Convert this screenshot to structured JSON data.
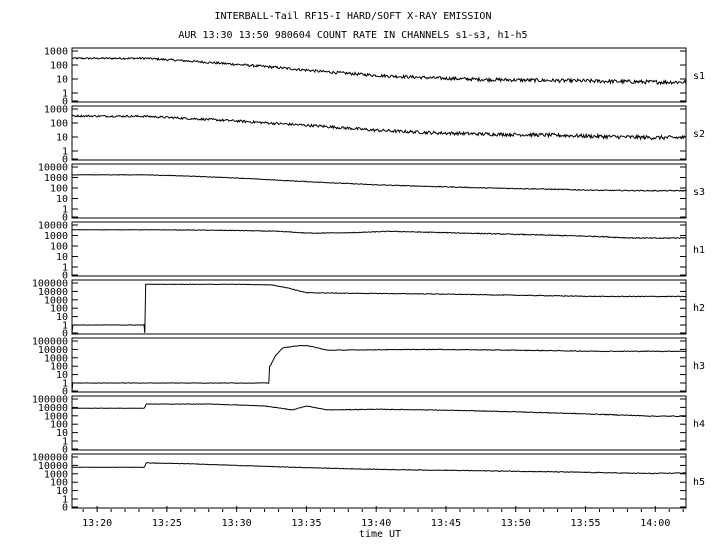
{
  "chart_data": {
    "type": "line",
    "title": "INTERBALL-Tail RF15-I HARD/SOFT X-RAY EMISSION",
    "subtitle": "AUR 13:30 13:50 980604  COUNT RATE IN CHANNELS s1-s3, h1-h5",
    "xlabel": "time UT",
    "x_unit": "minutes after 13:00 UT",
    "xlim": [
      18.2,
      62.2
    ],
    "x_ticks": [
      20,
      25,
      30,
      35,
      40,
      45,
      50,
      55,
      60
    ],
    "x_tick_labels": [
      "13:20",
      "13:25",
      "13:30",
      "13:35",
      "13:40",
      "13:45",
      "13:50",
      "13:55",
      "14:00"
    ],
    "y_scale": "log",
    "series": [
      {
        "name": "s1",
        "y_ticks": [
          "1000",
          "100",
          "10",
          "1",
          "0"
        ],
        "ylim_decades": [
          0,
          3
        ],
        "x": [
          18.2,
          23.5,
          27,
          30,
          33,
          36,
          40,
          44,
          48,
          52,
          56,
          60,
          62.2
        ],
        "values": [
          300,
          300,
          180,
          110,
          65,
          35,
          18,
          12,
          9,
          8,
          7,
          6,
          6
        ]
      },
      {
        "name": "s2",
        "y_ticks": [
          "1000",
          "100",
          "10",
          "1",
          "0"
        ],
        "ylim_decades": [
          0,
          3
        ],
        "x": [
          18.2,
          23.5,
          27,
          30,
          33,
          36,
          40,
          44,
          48,
          52,
          56,
          60,
          62.2
        ],
        "values": [
          320,
          300,
          200,
          140,
          90,
          60,
          30,
          20,
          16,
          14,
          11,
          9,
          9
        ]
      },
      {
        "name": "s3",
        "y_ticks": [
          "10000",
          "1000",
          "100",
          "10",
          "1",
          "0"
        ],
        "ylim_decades": [
          0,
          4
        ],
        "x": [
          18.2,
          23.5,
          27,
          30,
          33,
          36,
          40,
          44,
          48,
          52,
          56,
          60,
          62.2
        ],
        "values": [
          1800,
          1800,
          1300,
          900,
          550,
          350,
          200,
          140,
          100,
          80,
          60,
          55,
          55
        ]
      },
      {
        "name": "h1",
        "y_ticks": [
          "10000",
          "1000",
          "100",
          "10",
          "1",
          "0"
        ],
        "ylim_decades": [
          0,
          4
        ],
        "x": [
          18.2,
          23.5,
          27,
          30,
          33,
          35,
          38,
          41,
          44,
          48,
          52,
          56,
          58,
          60,
          62.2
        ],
        "values": [
          3500,
          3500,
          3300,
          3000,
          2500,
          1700,
          1800,
          2500,
          2000,
          1500,
          1100,
          800,
          600,
          550,
          600
        ]
      },
      {
        "name": "h2",
        "y_ticks": [
          "100000",
          "10000",
          "1000",
          "100",
          "10",
          "1",
          "0"
        ],
        "ylim_decades": [
          0,
          5
        ],
        "x": [
          18.2,
          23.4,
          23.5,
          30,
          32.5,
          33.5,
          35,
          38,
          44,
          50,
          56,
          62.2
        ],
        "values": [
          0,
          0,
          70000,
          70000,
          60000,
          30000,
          7000,
          6000,
          5000,
          3500,
          2500,
          2500
        ]
      },
      {
        "name": "h3",
        "y_ticks": [
          "100000",
          "10000",
          "1000",
          "100",
          "10",
          "1",
          "0"
        ],
        "ylim_decades": [
          0,
          5
        ],
        "x": [
          18.2,
          32.3,
          32.4,
          32.8,
          33.3,
          34.2,
          35,
          36.5,
          40,
          44,
          50,
          56,
          62.2
        ],
        "values": [
          0,
          0,
          100,
          2000,
          15000,
          25000,
          30000,
          8000,
          9000,
          10000,
          8000,
          6000,
          6000
        ]
      },
      {
        "name": "h4",
        "y_ticks": [
          "100000",
          "10000",
          "1000",
          "100",
          "10",
          "1",
          "0"
        ],
        "ylim_decades": [
          0,
          5
        ],
        "x": [
          18.2,
          23.4,
          23.5,
          28,
          32,
          34,
          35,
          36.5,
          40,
          44,
          50,
          56,
          60,
          62.2
        ],
        "values": [
          8000,
          8000,
          25000,
          25000,
          15000,
          5000,
          15000,
          5000,
          6000,
          5000,
          3000,
          1500,
          900,
          900
        ]
      },
      {
        "name": "h5",
        "y_ticks": [
          "100000",
          "10000",
          "1000",
          "100",
          "10",
          "1",
          "0"
        ],
        "ylim_decades": [
          0,
          5
        ],
        "x": [
          18.2,
          23.4,
          23.5,
          27,
          30,
          34,
          38,
          42,
          46,
          50,
          54,
          58,
          60,
          62.2
        ],
        "values": [
          6000,
          6000,
          20000,
          15000,
          10000,
          6000,
          4000,
          3000,
          2500,
          2000,
          1600,
          1200,
          1100,
          1300
        ]
      }
    ],
    "grid": false,
    "legend": "none"
  }
}
